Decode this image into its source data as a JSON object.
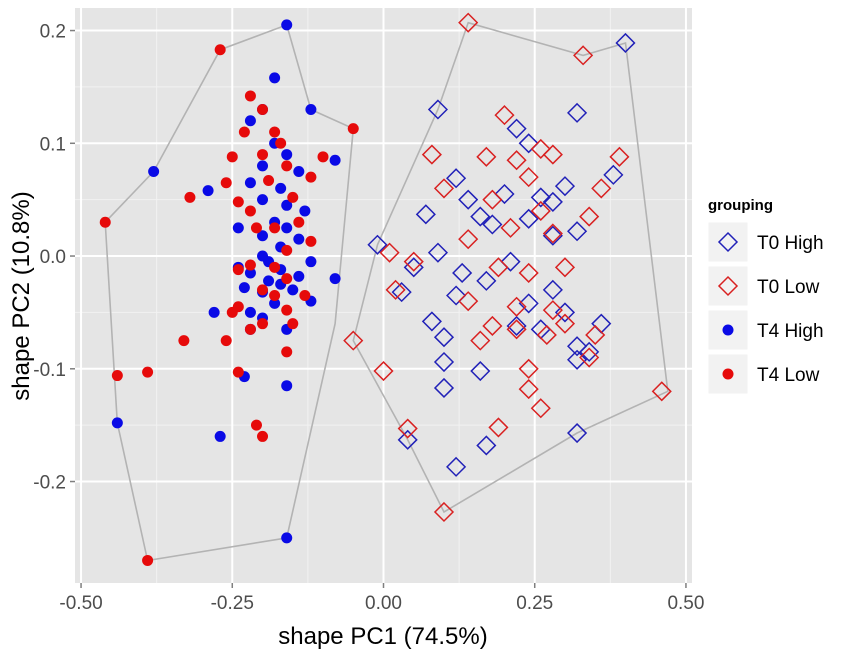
{
  "chart_data": {
    "type": "scatter",
    "xlabel": "shape PC1 (74.5%)",
    "ylabel": "shape PC2 (10.8%)",
    "xlim": [
      -0.51,
      0.51
    ],
    "ylim": [
      -0.29,
      0.22
    ],
    "x_ticks": [
      -0.5,
      -0.25,
      0.0,
      0.25,
      0.5
    ],
    "x_tick_labels": [
      "-0.50",
      "-0.25",
      "0.00",
      "0.25",
      "0.50"
    ],
    "y_ticks": [
      0.2,
      0.1,
      0.0,
      -0.1,
      -0.2
    ],
    "y_tick_labels": [
      "0.2",
      "0.1",
      "0.0",
      "-0.1",
      "-0.2"
    ],
    "grid": true,
    "legend": {
      "title": "grouping",
      "position": "right"
    },
    "hulls": [
      {
        "group": "T4",
        "points": [
          [
            -0.16,
            0.205
          ],
          [
            -0.12,
            0.13
          ],
          [
            -0.05,
            0.113
          ],
          [
            -0.08,
            -0.06
          ],
          [
            -0.16,
            -0.25
          ],
          [
            -0.39,
            -0.27
          ],
          [
            -0.44,
            -0.148
          ],
          [
            -0.46,
            0.03
          ],
          [
            -0.38,
            0.075
          ],
          [
            -0.27,
            0.183
          ]
        ]
      },
      {
        "group": "T0",
        "points": [
          [
            0.14,
            0.207
          ],
          [
            0.33,
            0.178
          ],
          [
            0.4,
            0.189
          ],
          [
            0.47,
            -0.12
          ],
          [
            0.32,
            -0.157
          ],
          [
            0.1,
            -0.227
          ],
          [
            0.04,
            -0.163
          ],
          [
            -0.05,
            -0.075
          ],
          [
            -0.01,
            0.01
          ],
          [
            0.09,
            0.13
          ]
        ]
      }
    ],
    "series": [
      {
        "name": "T0 High",
        "marker": "open-diamond",
        "color": "#2121b8",
        "points": [
          [
            0.4,
            0.189
          ],
          [
            0.09,
            0.13
          ],
          [
            0.32,
            0.127
          ],
          [
            0.22,
            0.113
          ],
          [
            0.24,
            0.1
          ],
          [
            0.38,
            0.072
          ],
          [
            0.12,
            0.069
          ],
          [
            0.3,
            0.062
          ],
          [
            0.2,
            0.055
          ],
          [
            0.26,
            0.052
          ],
          [
            0.14,
            0.05
          ],
          [
            0.28,
            0.048
          ],
          [
            0.07,
            0.037
          ],
          [
            0.16,
            0.035
          ],
          [
            0.24,
            0.033
          ],
          [
            0.18,
            0.028
          ],
          [
            0.32,
            0.022
          ],
          [
            0.28,
            0.018
          ],
          [
            -0.01,
            0.01
          ],
          [
            0.09,
            0.003
          ],
          [
            0.21,
            -0.005
          ],
          [
            0.05,
            -0.01
          ],
          [
            0.13,
            -0.015
          ],
          [
            0.17,
            -0.022
          ],
          [
            0.28,
            -0.03
          ],
          [
            0.03,
            -0.032
          ],
          [
            0.12,
            -0.035
          ],
          [
            0.24,
            -0.042
          ],
          [
            0.3,
            -0.05
          ],
          [
            0.08,
            -0.058
          ],
          [
            0.36,
            -0.06
          ],
          [
            0.22,
            -0.062
          ],
          [
            0.26,
            -0.065
          ],
          [
            0.1,
            -0.072
          ],
          [
            0.32,
            -0.08
          ],
          [
            0.34,
            -0.085
          ],
          [
            0.1,
            -0.094
          ],
          [
            0.16,
            -0.102
          ],
          [
            0.32,
            -0.092
          ],
          [
            0.1,
            -0.117
          ],
          [
            0.32,
            -0.157
          ],
          [
            0.04,
            -0.163
          ],
          [
            0.17,
            -0.168
          ],
          [
            0.12,
            -0.187
          ]
        ]
      },
      {
        "name": "T0 Low",
        "marker": "open-diamond",
        "color": "#d92121",
        "points": [
          [
            0.14,
            0.207
          ],
          [
            0.33,
            0.178
          ],
          [
            0.2,
            0.125
          ],
          [
            0.26,
            0.095
          ],
          [
            0.39,
            0.088
          ],
          [
            0.08,
            0.09
          ],
          [
            0.17,
            0.088
          ],
          [
            0.22,
            0.085
          ],
          [
            0.28,
            0.09
          ],
          [
            0.36,
            0.06
          ],
          [
            0.24,
            0.07
          ],
          [
            0.1,
            0.06
          ],
          [
            0.18,
            0.05
          ],
          [
            0.26,
            0.04
          ],
          [
            0.34,
            0.035
          ],
          [
            0.21,
            0.025
          ],
          [
            0.14,
            0.015
          ],
          [
            0.28,
            0.02
          ],
          [
            0.01,
            0.003
          ],
          [
            0.05,
            -0.005
          ],
          [
            0.19,
            -0.01
          ],
          [
            0.24,
            -0.015
          ],
          [
            0.3,
            -0.01
          ],
          [
            0.02,
            -0.03
          ],
          [
            0.14,
            -0.04
          ],
          [
            0.22,
            -0.045
          ],
          [
            0.28,
            -0.048
          ],
          [
            0.3,
            -0.06
          ],
          [
            0.18,
            -0.062
          ],
          [
            0.22,
            -0.065
          ],
          [
            0.16,
            -0.075
          ],
          [
            0.27,
            -0.07
          ],
          [
            0.35,
            -0.07
          ],
          [
            -0.05,
            -0.075
          ],
          [
            0.34,
            -0.09
          ],
          [
            0.0,
            -0.102
          ],
          [
            0.24,
            -0.1
          ],
          [
            0.24,
            -0.118
          ],
          [
            0.46,
            -0.12
          ],
          [
            0.26,
            -0.135
          ],
          [
            0.19,
            -0.152
          ],
          [
            0.04,
            -0.153
          ],
          [
            0.1,
            -0.227
          ]
        ]
      },
      {
        "name": "T4 High",
        "marker": "filled-circle",
        "color": "#0a0ae6",
        "points": [
          [
            -0.16,
            0.205
          ],
          [
            -0.18,
            0.158
          ],
          [
            -0.12,
            0.13
          ],
          [
            -0.2,
            0.13
          ],
          [
            -0.22,
            0.12
          ],
          [
            -0.18,
            0.1
          ],
          [
            -0.16,
            0.09
          ],
          [
            -0.08,
            0.085
          ],
          [
            -0.2,
            0.08
          ],
          [
            -0.38,
            0.075
          ],
          [
            -0.14,
            0.075
          ],
          [
            -0.22,
            0.065
          ],
          [
            -0.17,
            0.06
          ],
          [
            -0.29,
            0.058
          ],
          [
            -0.2,
            0.05
          ],
          [
            -0.16,
            0.045
          ],
          [
            -0.13,
            0.04
          ],
          [
            -0.18,
            0.03
          ],
          [
            -0.24,
            0.025
          ],
          [
            -0.16,
            0.025
          ],
          [
            -0.2,
            0.018
          ],
          [
            -0.14,
            0.015
          ],
          [
            -0.17,
            0.008
          ],
          [
            -0.2,
            0.0
          ],
          [
            -0.19,
            -0.005
          ],
          [
            -0.12,
            -0.005
          ],
          [
            -0.24,
            -0.01
          ],
          [
            -0.17,
            -0.012
          ],
          [
            -0.22,
            -0.015
          ],
          [
            -0.14,
            -0.018
          ],
          [
            -0.08,
            -0.02
          ],
          [
            -0.19,
            -0.022
          ],
          [
            -0.17,
            -0.025
          ],
          [
            -0.23,
            -0.028
          ],
          [
            -0.15,
            -0.03
          ],
          [
            -0.2,
            -0.032
          ],
          [
            -0.12,
            -0.04
          ],
          [
            -0.18,
            -0.042
          ],
          [
            -0.22,
            -0.05
          ],
          [
            -0.28,
            -0.05
          ],
          [
            -0.2,
            -0.055
          ],
          [
            -0.16,
            -0.065
          ],
          [
            -0.22,
            -0.065
          ],
          [
            -0.23,
            -0.107
          ],
          [
            -0.16,
            -0.115
          ],
          [
            -0.44,
            -0.148
          ],
          [
            -0.27,
            -0.16
          ],
          [
            -0.16,
            -0.25
          ]
        ]
      },
      {
        "name": "T4 Low",
        "marker": "filled-circle",
        "color": "#e60a0a",
        "points": [
          [
            -0.27,
            0.183
          ],
          [
            -0.22,
            0.142
          ],
          [
            -0.05,
            0.113
          ],
          [
            -0.2,
            0.13
          ],
          [
            -0.18,
            0.11
          ],
          [
            -0.23,
            0.11
          ],
          [
            -0.17,
            0.1
          ],
          [
            -0.2,
            0.09
          ],
          [
            -0.1,
            0.088
          ],
          [
            -0.25,
            0.088
          ],
          [
            -0.16,
            0.08
          ],
          [
            -0.12,
            0.07
          ],
          [
            -0.26,
            0.065
          ],
          [
            -0.19,
            0.067
          ],
          [
            -0.32,
            0.052
          ],
          [
            -0.15,
            0.052
          ],
          [
            -0.24,
            0.048
          ],
          [
            -0.22,
            0.04
          ],
          [
            -0.14,
            0.03
          ],
          [
            -0.46,
            0.03
          ],
          [
            -0.18,
            0.025
          ],
          [
            -0.21,
            0.025
          ],
          [
            -0.12,
            0.013
          ],
          [
            -0.16,
            0.005
          ],
          [
            -0.22,
            -0.008
          ],
          [
            -0.18,
            -0.01
          ],
          [
            -0.24,
            -0.012
          ],
          [
            -0.16,
            -0.02
          ],
          [
            -0.2,
            -0.03
          ],
          [
            -0.18,
            -0.035
          ],
          [
            -0.13,
            -0.035
          ],
          [
            -0.24,
            -0.045
          ],
          [
            -0.16,
            -0.048
          ],
          [
            -0.2,
            -0.06
          ],
          [
            -0.22,
            -0.065
          ],
          [
            -0.25,
            -0.05
          ],
          [
            -0.15,
            -0.06
          ],
          [
            -0.26,
            -0.075
          ],
          [
            -0.33,
            -0.075
          ],
          [
            -0.16,
            -0.085
          ],
          [
            -0.39,
            -0.103
          ],
          [
            -0.44,
            -0.106
          ],
          [
            -0.24,
            -0.103
          ],
          [
            -0.21,
            -0.15
          ],
          [
            -0.2,
            -0.16
          ],
          [
            -0.39,
            -0.27
          ]
        ]
      }
    ]
  }
}
